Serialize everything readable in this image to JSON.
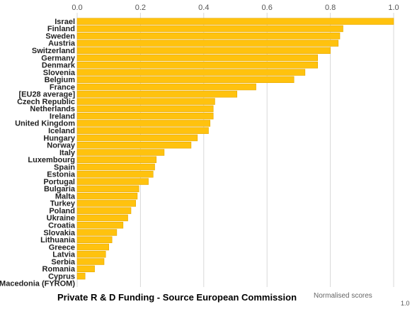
{
  "chart_data": {
    "type": "bar",
    "orientation": "horizontal",
    "title": "Private R & D Funding - Source European Commission",
    "xlabel": "Normalised scores",
    "corner_label": "1.0",
    "xlim": [
      0,
      1.0
    ],
    "xticks": [
      "0.0",
      "0.2",
      "0.4",
      "0.6",
      "0.8",
      "1.0"
    ],
    "xtick_values": [
      0,
      0.2,
      0.4,
      0.6,
      0.8,
      1.0
    ],
    "grid": true,
    "bar_color": "#ffc20e",
    "categories": [
      "Israel",
      "Finland",
      "Sweden",
      "Austria",
      "Switzerland",
      "Germany",
      "Denmark",
      "Slovenia",
      "Belgium",
      "France",
      "[EU28 average]",
      "Czech Republic",
      "Netherlands",
      "Ireland",
      "United Kingdom",
      "Iceland",
      "Hungary",
      "Norway",
      "Italy",
      "Luxembourg",
      "Spain",
      "Estonia",
      "Portugal",
      "Bulgaria",
      "Malta",
      "Turkey",
      "Poland",
      "Ukraine",
      "Croatia",
      "Slovakia",
      "Lithuania",
      "Greece",
      "Latvia",
      "Serbia",
      "Romania",
      "Cyprus",
      "Macedonia (FYROM)"
    ],
    "values": [
      1.0,
      0.84,
      0.83,
      0.825,
      0.8,
      0.76,
      0.76,
      0.72,
      0.685,
      0.565,
      0.505,
      0.435,
      0.43,
      0.43,
      0.42,
      0.415,
      0.38,
      0.36,
      0.275,
      0.25,
      0.245,
      0.24,
      0.225,
      0.195,
      0.19,
      0.185,
      0.17,
      0.16,
      0.145,
      0.125,
      0.11,
      0.1,
      0.09,
      0.085,
      0.055,
      0.025,
      0.0
    ]
  }
}
